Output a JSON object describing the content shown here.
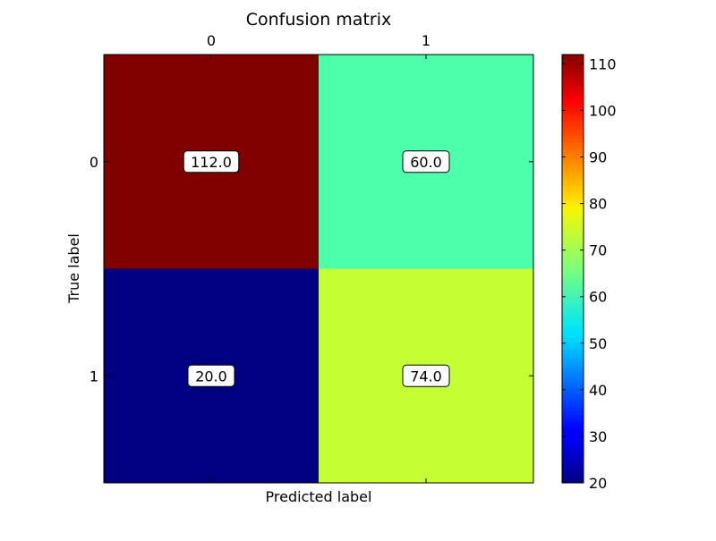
{
  "chart_data": {
    "type": "heatmap",
    "title": "Confusion matrix",
    "xlabel": "Predicted label",
    "ylabel": "True label",
    "x_categories": [
      "0",
      "1"
    ],
    "y_categories": [
      "0",
      "1"
    ],
    "values": [
      [
        112.0,
        60.0
      ],
      [
        20.0,
        74.0
      ]
    ],
    "cell_labels": [
      [
        "112.0",
        "60.0"
      ],
      [
        "20.0",
        "74.0"
      ]
    ],
    "x_axis_position": "top",
    "colormap": "jet",
    "colorbar": {
      "min": 20,
      "max": 112,
      "ticks": [
        "20",
        "30",
        "40",
        "50",
        "60",
        "70",
        "80",
        "90",
        "100",
        "110"
      ]
    },
    "grid": false,
    "cell_colors": [
      [
        "#800000",
        "#4cffaa"
      ],
      [
        "#000080",
        "#c4ff33"
      ]
    ]
  }
}
